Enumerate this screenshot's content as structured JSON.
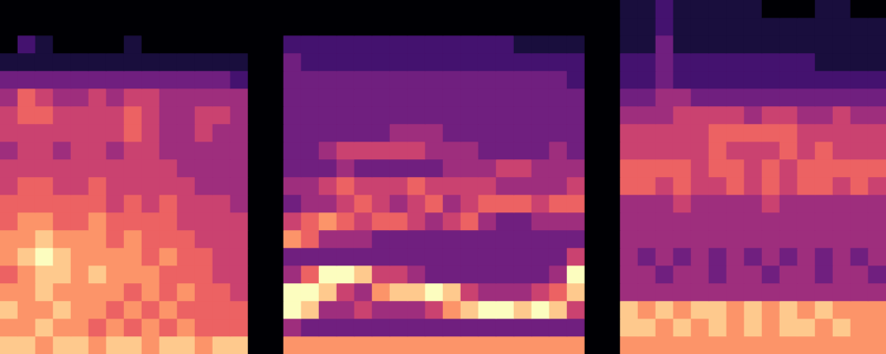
{
  "chart_data": {
    "type": "heatmap",
    "color": "magma",
    "tick_labels": false,
    "zlim": [
      0,
      9
    ],
    "cells": [
      [
        8,
        8,
        7,
        8,
        8,
        7,
        8,
        8,
        7,
        8,
        8,
        7,
        8,
        8,
        0,
        0,
        7,
        7,
        7,
        7,
        7,
        7,
        7,
        7,
        7,
        7,
        7,
        7,
        7,
        7,
        7,
        7,
        7,
        0,
        0,
        7,
        7,
        7,
        7,
        7,
        7,
        7,
        7,
        7,
        7,
        7,
        7,
        7,
        7,
        7
      ],
      [
        7,
        7,
        8,
        7,
        7,
        6,
        7,
        6,
        7,
        6,
        7,
        6,
        6,
        6,
        0,
        0,
        4,
        3,
        3,
        3,
        3,
        3,
        3,
        3,
        3,
        3,
        3,
        3,
        3,
        3,
        3,
        3,
        3,
        0,
        0,
        8,
        8,
        7,
        8,
        7,
        8,
        7,
        8,
        7,
        8,
        8,
        7,
        8,
        7,
        7
      ],
      [
        8,
        7,
        7,
        8,
        7,
        7,
        6,
        7,
        6,
        7,
        6,
        6,
        6,
        6,
        0,
        0,
        9,
        8,
        4,
        4,
        5,
        4,
        4,
        4,
        5,
        7,
        8,
        9,
        9,
        8,
        9,
        8,
        5,
        0,
        0,
        8,
        7,
        8,
        7,
        8,
        8,
        7,
        8,
        7,
        8,
        7,
        8,
        7,
        7,
        7
      ],
      [
        7,
        7,
        8,
        7,
        7,
        7,
        7,
        6,
        7,
        6,
        7,
        6,
        6,
        5,
        0,
        0,
        9,
        9,
        8,
        5,
        4,
        7,
        8,
        8,
        9,
        8,
        5,
        4,
        4,
        4,
        5,
        6,
        8,
        0,
        0,
        4,
        4,
        4,
        4,
        4,
        4,
        4,
        4,
        4,
        4,
        4,
        4,
        4,
        4,
        4
      ],
      [
        6,
        7,
        8,
        8,
        7,
        8,
        7,
        7,
        7,
        6,
        6,
        6,
        5,
        5,
        0,
        0,
        4,
        6,
        9,
        9,
        8,
        5,
        5,
        4,
        3,
        3,
        3,
        3,
        3,
        3,
        3,
        4,
        9,
        0,
        0,
        4,
        4,
        3,
        4,
        4,
        3,
        4,
        4,
        3,
        4,
        4,
        3,
        4,
        4,
        3
      ],
      [
        7,
        8,
        9,
        8,
        7,
        7,
        7,
        7,
        6,
        7,
        6,
        6,
        5,
        5,
        0,
        0,
        3,
        3,
        3,
        3,
        3,
        3,
        3,
        3,
        3,
        3,
        3,
        3,
        3,
        3,
        3,
        3,
        5,
        0,
        0,
        4,
        3,
        4,
        3,
        4,
        3,
        4,
        3,
        4,
        3,
        4,
        3,
        4,
        3,
        4
      ],
      [
        7,
        7,
        8,
        7,
        7,
        7,
        6,
        7,
        6,
        6,
        6,
        5,
        5,
        5,
        0,
        0,
        7,
        6,
        4,
        4,
        4,
        3,
        3,
        3,
        3,
        3,
        3,
        3,
        3,
        3,
        3,
        3,
        3,
        0,
        0,
        4,
        4,
        4,
        4,
        4,
        4,
        4,
        4,
        4,
        4,
        4,
        4,
        4,
        4,
        4
      ],
      [
        6,
        7,
        7,
        6,
        6,
        7,
        6,
        6,
        6,
        6,
        5,
        5,
        5,
        5,
        0,
        0,
        5,
        6,
        7,
        6,
        5,
        6,
        6,
        5,
        4,
        5,
        6,
        4,
        3,
        3,
        4,
        4,
        4,
        0,
        0,
        4,
        4,
        4,
        4,
        4,
        4,
        4,
        4,
        4,
        4,
        4,
        4,
        4,
        4,
        4
      ],
      [
        6,
        6,
        6,
        6,
        6,
        6,
        5,
        6,
        5,
        6,
        5,
        5,
        5,
        4,
        0,
        0,
        3,
        4,
        4,
        5,
        6,
        5,
        4,
        5,
        6,
        4,
        5,
        6,
        6,
        6,
        5,
        6,
        6,
        0,
        0,
        4,
        4,
        4,
        5,
        4,
        4,
        4,
        4,
        5,
        4,
        4,
        4,
        4,
        4,
        4
      ],
      [
        5,
        6,
        6,
        5,
        5,
        6,
        5,
        5,
        5,
        5,
        5,
        4,
        4,
        4,
        0,
        0,
        4,
        4,
        5,
        6,
        5,
        5,
        5,
        6,
        5,
        5,
        5,
        5,
        4,
        4,
        4,
        4,
        5,
        0,
        0,
        6,
        6,
        5,
        6,
        5,
        5,
        6,
        5,
        6,
        5,
        6,
        6,
        5,
        6,
        5
      ],
      [
        5,
        5,
        5,
        5,
        5,
        5,
        5,
        5,
        5,
        5,
        4,
        4,
        4,
        4,
        0,
        0,
        3,
        3,
        3,
        4,
        3,
        3,
        3,
        3,
        3,
        4,
        4,
        4,
        5,
        5,
        4,
        4,
        4,
        0,
        0,
        6,
        6,
        6,
        6,
        5,
        6,
        6,
        5,
        6,
        5,
        6,
        6,
        6,
        6,
        6
      ],
      [
        4,
        5,
        5,
        4,
        5,
        5,
        4,
        5,
        5,
        4,
        4,
        4,
        4,
        4,
        0,
        0,
        3,
        3,
        4,
        5,
        5,
        5,
        5,
        5,
        4,
        4,
        4,
        3,
        3,
        3,
        3,
        4,
        3,
        0,
        0,
        5,
        5,
        5,
        5,
        5,
        6,
        5,
        5,
        5,
        6,
        5,
        6,
        5,
        5,
        5
      ],
      [
        5,
        5,
        5,
        5,
        5,
        5,
        5,
        6,
        5,
        4,
        4,
        5,
        4,
        4,
        0,
        0,
        3,
        3,
        3,
        3,
        3,
        3,
        4,
        4,
        4,
        3,
        3,
        3,
        3,
        3,
        3,
        3,
        3,
        0,
        0,
        5,
        5,
        5,
        5,
        5,
        6,
        6,
        6,
        6,
        6,
        5,
        5,
        5,
        5,
        5
      ],
      [
        5,
        6,
        6,
        5,
        5,
        5,
        5,
        6,
        5,
        4,
        4,
        5,
        5,
        4,
        0,
        0,
        3,
        3,
        3,
        3,
        3,
        3,
        3,
        3,
        3,
        3,
        3,
        3,
        3,
        3,
        3,
        3,
        3,
        0,
        0,
        4,
        4,
        4,
        5,
        5,
        5,
        5,
        4,
        5,
        5,
        4,
        4,
        5,
        4,
        4
      ],
      [
        4,
        6,
        5,
        4,
        4,
        5,
        4,
        5,
        5,
        4,
        4,
        4,
        4,
        4,
        0,
        0,
        3,
        3,
        3,
        3,
        3,
        3,
        3,
        3,
        3,
        3,
        3,
        3,
        3,
        3,
        3,
        3,
        3,
        0,
        0,
        3,
        3,
        4,
        4,
        3,
        3,
        3,
        3,
        3,
        3,
        3,
        3,
        3,
        3,
        3
      ],
      [
        3,
        3,
        3,
        3,
        3,
        3,
        3,
        3,
        3,
        3,
        3,
        3,
        3,
        2,
        0,
        0,
        3,
        3,
        3,
        3,
        3,
        3,
        3,
        3,
        3,
        3,
        3,
        3,
        3,
        3,
        3,
        3,
        2,
        0,
        0,
        2,
        2,
        3,
        2,
        2,
        2,
        2,
        2,
        2,
        2,
        2,
        2,
        2,
        2,
        2
      ],
      [
        1,
        1,
        1,
        1,
        1,
        1,
        1,
        1,
        1,
        1,
        1,
        1,
        1,
        1,
        0,
        0,
        3,
        2,
        2,
        2,
        2,
        2,
        2,
        2,
        2,
        2,
        2,
        2,
        2,
        2,
        2,
        2,
        2,
        0,
        0,
        2,
        2,
        3,
        2,
        2,
        2,
        2,
        2,
        2,
        2,
        2,
        1,
        1,
        1,
        1
      ],
      [
        0,
        2,
        1,
        0,
        0,
        0,
        0,
        1,
        0,
        0,
        0,
        0,
        0,
        0,
        0,
        0,
        2,
        2,
        2,
        2,
        2,
        2,
        2,
        2,
        2,
        2,
        2,
        2,
        2,
        1,
        1,
        1,
        1,
        0,
        0,
        1,
        1,
        3,
        1,
        1,
        1,
        1,
        1,
        1,
        1,
        1,
        1,
        1,
        1,
        1
      ],
      [
        0,
        0,
        0,
        0,
        0,
        0,
        0,
        0,
        0,
        0,
        0,
        0,
        0,
        0,
        0,
        0,
        0,
        0,
        0,
        0,
        0,
        0,
        0,
        0,
        0,
        0,
        0,
        0,
        0,
        0,
        0,
        0,
        0,
        0,
        0,
        1,
        1,
        2,
        1,
        1,
        1,
        1,
        1,
        1,
        1,
        1,
        1,
        1,
        1,
        1
      ],
      [
        0,
        0,
        0,
        0,
        0,
        0,
        0,
        0,
        0,
        0,
        0,
        0,
        0,
        0,
        0,
        0,
        0,
        0,
        0,
        0,
        0,
        0,
        0,
        0,
        0,
        0,
        0,
        0,
        0,
        0,
        0,
        0,
        0,
        0,
        0,
        1,
        1,
        2,
        1,
        1,
        1,
        1,
        1,
        0,
        0,
        0,
        1,
        1,
        0,
        0
      ]
    ]
  }
}
